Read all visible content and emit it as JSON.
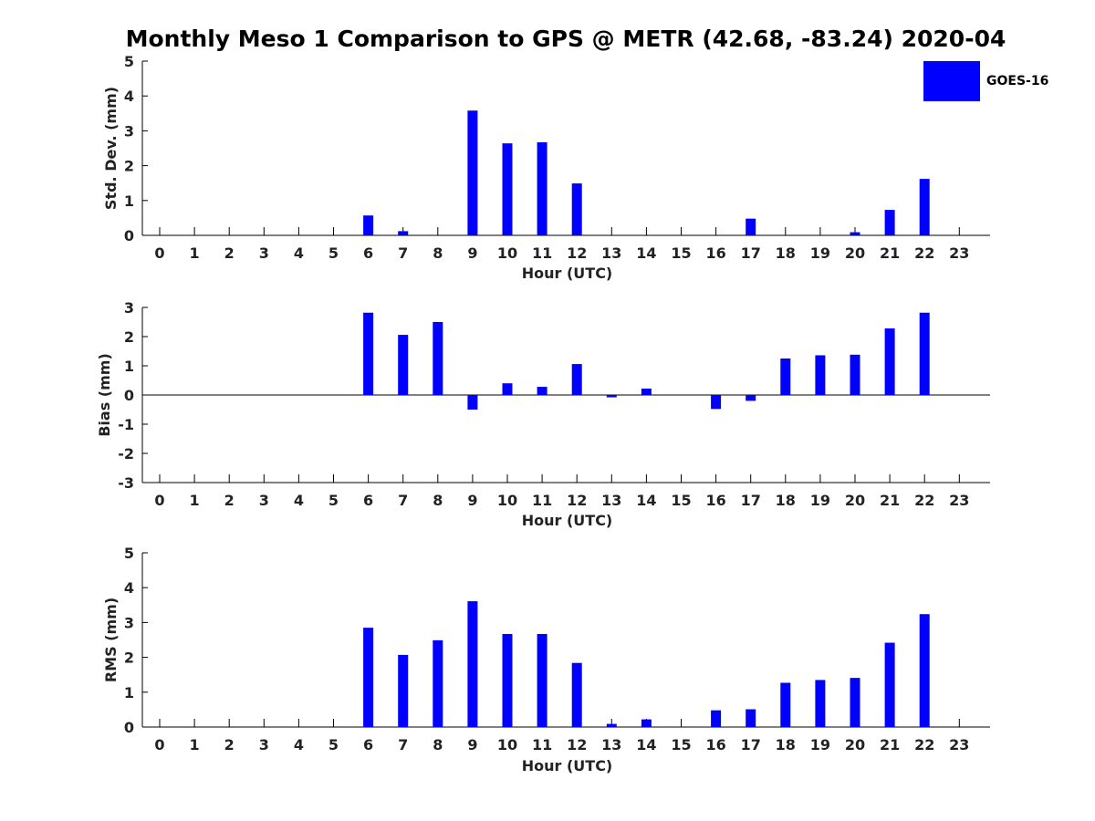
{
  "title": "Monthly Meso 1 Comparison to GPS @ METR (42.68, -83.24) 2020-04",
  "legend": {
    "label": "GOES-16",
    "color": "#0000ff"
  },
  "chart_data": [
    {
      "type": "bar",
      "title": "Monthly Meso 1 Comparison to GPS @ METR (42.68, -83.24) 2020-04",
      "xlabel": "Hour (UTC)",
      "ylabel": "Std. Dev. (mm)",
      "ylim": [
        0,
        5
      ],
      "yticks": [
        0,
        1,
        2,
        3,
        4,
        5
      ],
      "categories": [
        "0",
        "1",
        "2",
        "3",
        "4",
        "5",
        "6",
        "7",
        "8",
        "9",
        "10",
        "11",
        "12",
        "13",
        "14",
        "15",
        "16",
        "17",
        "18",
        "19",
        "20",
        "21",
        "22",
        "23"
      ],
      "series": [
        {
          "name": "GOES-16",
          "color": "#0000ff",
          "values": [
            0,
            0,
            0,
            0,
            0,
            0,
            0.57,
            0.12,
            0,
            3.58,
            2.64,
            2.67,
            1.49,
            0,
            0,
            0,
            0,
            0.48,
            0,
            0,
            0.09,
            0.73,
            1.62,
            0
          ]
        }
      ],
      "grid": false,
      "legend_position": "top-right"
    },
    {
      "type": "bar",
      "xlabel": "Hour (UTC)",
      "ylabel": "Bias (mm)",
      "ylim": [
        -3,
        3
      ],
      "yticks": [
        -3,
        -2,
        -1,
        0,
        1,
        2,
        3
      ],
      "zero_line": true,
      "categories": [
        "0",
        "1",
        "2",
        "3",
        "4",
        "5",
        "6",
        "7",
        "8",
        "9",
        "10",
        "11",
        "12",
        "13",
        "14",
        "15",
        "16",
        "17",
        "18",
        "19",
        "20",
        "21",
        "22",
        "23"
      ],
      "series": [
        {
          "name": "GOES-16",
          "color": "#0000ff",
          "values": [
            0,
            0,
            0,
            0,
            0,
            0,
            2.82,
            2.06,
            2.5,
            -0.5,
            0.4,
            0.28,
            1.06,
            -0.08,
            0.22,
            0,
            -0.48,
            -0.2,
            1.25,
            1.36,
            1.38,
            2.28,
            2.82,
            0
          ]
        }
      ],
      "grid": false
    },
    {
      "type": "bar",
      "xlabel": "Hour (UTC)",
      "ylabel": "RMS (mm)",
      "ylim": [
        0,
        5
      ],
      "yticks": [
        0,
        1,
        2,
        3,
        4,
        5
      ],
      "categories": [
        "0",
        "1",
        "2",
        "3",
        "4",
        "5",
        "6",
        "7",
        "8",
        "9",
        "10",
        "11",
        "12",
        "13",
        "14",
        "15",
        "16",
        "17",
        "18",
        "19",
        "20",
        "21",
        "22",
        "23"
      ],
      "series": [
        {
          "name": "GOES-16",
          "color": "#0000ff",
          "values": [
            0,
            0,
            0,
            0,
            0,
            0,
            2.85,
            2.07,
            2.49,
            3.61,
            2.67,
            2.67,
            1.84,
            0.09,
            0.22,
            0,
            0.48,
            0.51,
            1.27,
            1.35,
            1.41,
            2.42,
            3.24,
            0
          ]
        }
      ],
      "grid": false
    }
  ]
}
